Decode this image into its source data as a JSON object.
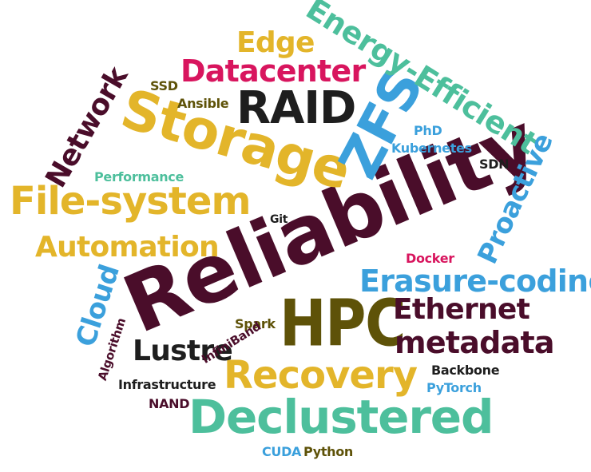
{
  "words": {
    "reliability": "Reliability",
    "storage": "Storage",
    "file_system": "File-system",
    "hpc": "HPC",
    "declustered": "Declustered",
    "recovery": "Recovery",
    "raid": "RAID",
    "zfs": "ZFS",
    "energy_efficient": "Energy-Efficient",
    "erasure_coding": "Erasure-coding",
    "automation": "Automation",
    "datacenter": "Datacenter",
    "edge": "Edge",
    "network": "Network",
    "proactive": "Proactive",
    "cloud": "Cloud",
    "ethernet": "Ethernet",
    "metadata": "metadata",
    "lustre": "Lustre",
    "ssd": "SSD",
    "ansible": "Ansible",
    "phd": "PhD",
    "kubernetes": "Kubernetes",
    "sdn": "SDN",
    "performance": "Performance",
    "git": "Git",
    "docker": "Docker",
    "spark": "Spark",
    "infiniband": "InfiniBand",
    "algorithm": "Algorithm",
    "infrastructure": "Infrastructure",
    "backbone": "Backbone",
    "pytorch": "PyTorch",
    "nand": "NAND",
    "cuda": "CUDA",
    "python": "Python"
  },
  "colors": {
    "maroon": "#4a0d2a",
    "gold": "#e3b52a",
    "teal": "#4dbf9c",
    "blue": "#3ba0dc",
    "pink": "#d8155e",
    "olive": "#5e5208",
    "dark": "#1e1e1e"
  }
}
